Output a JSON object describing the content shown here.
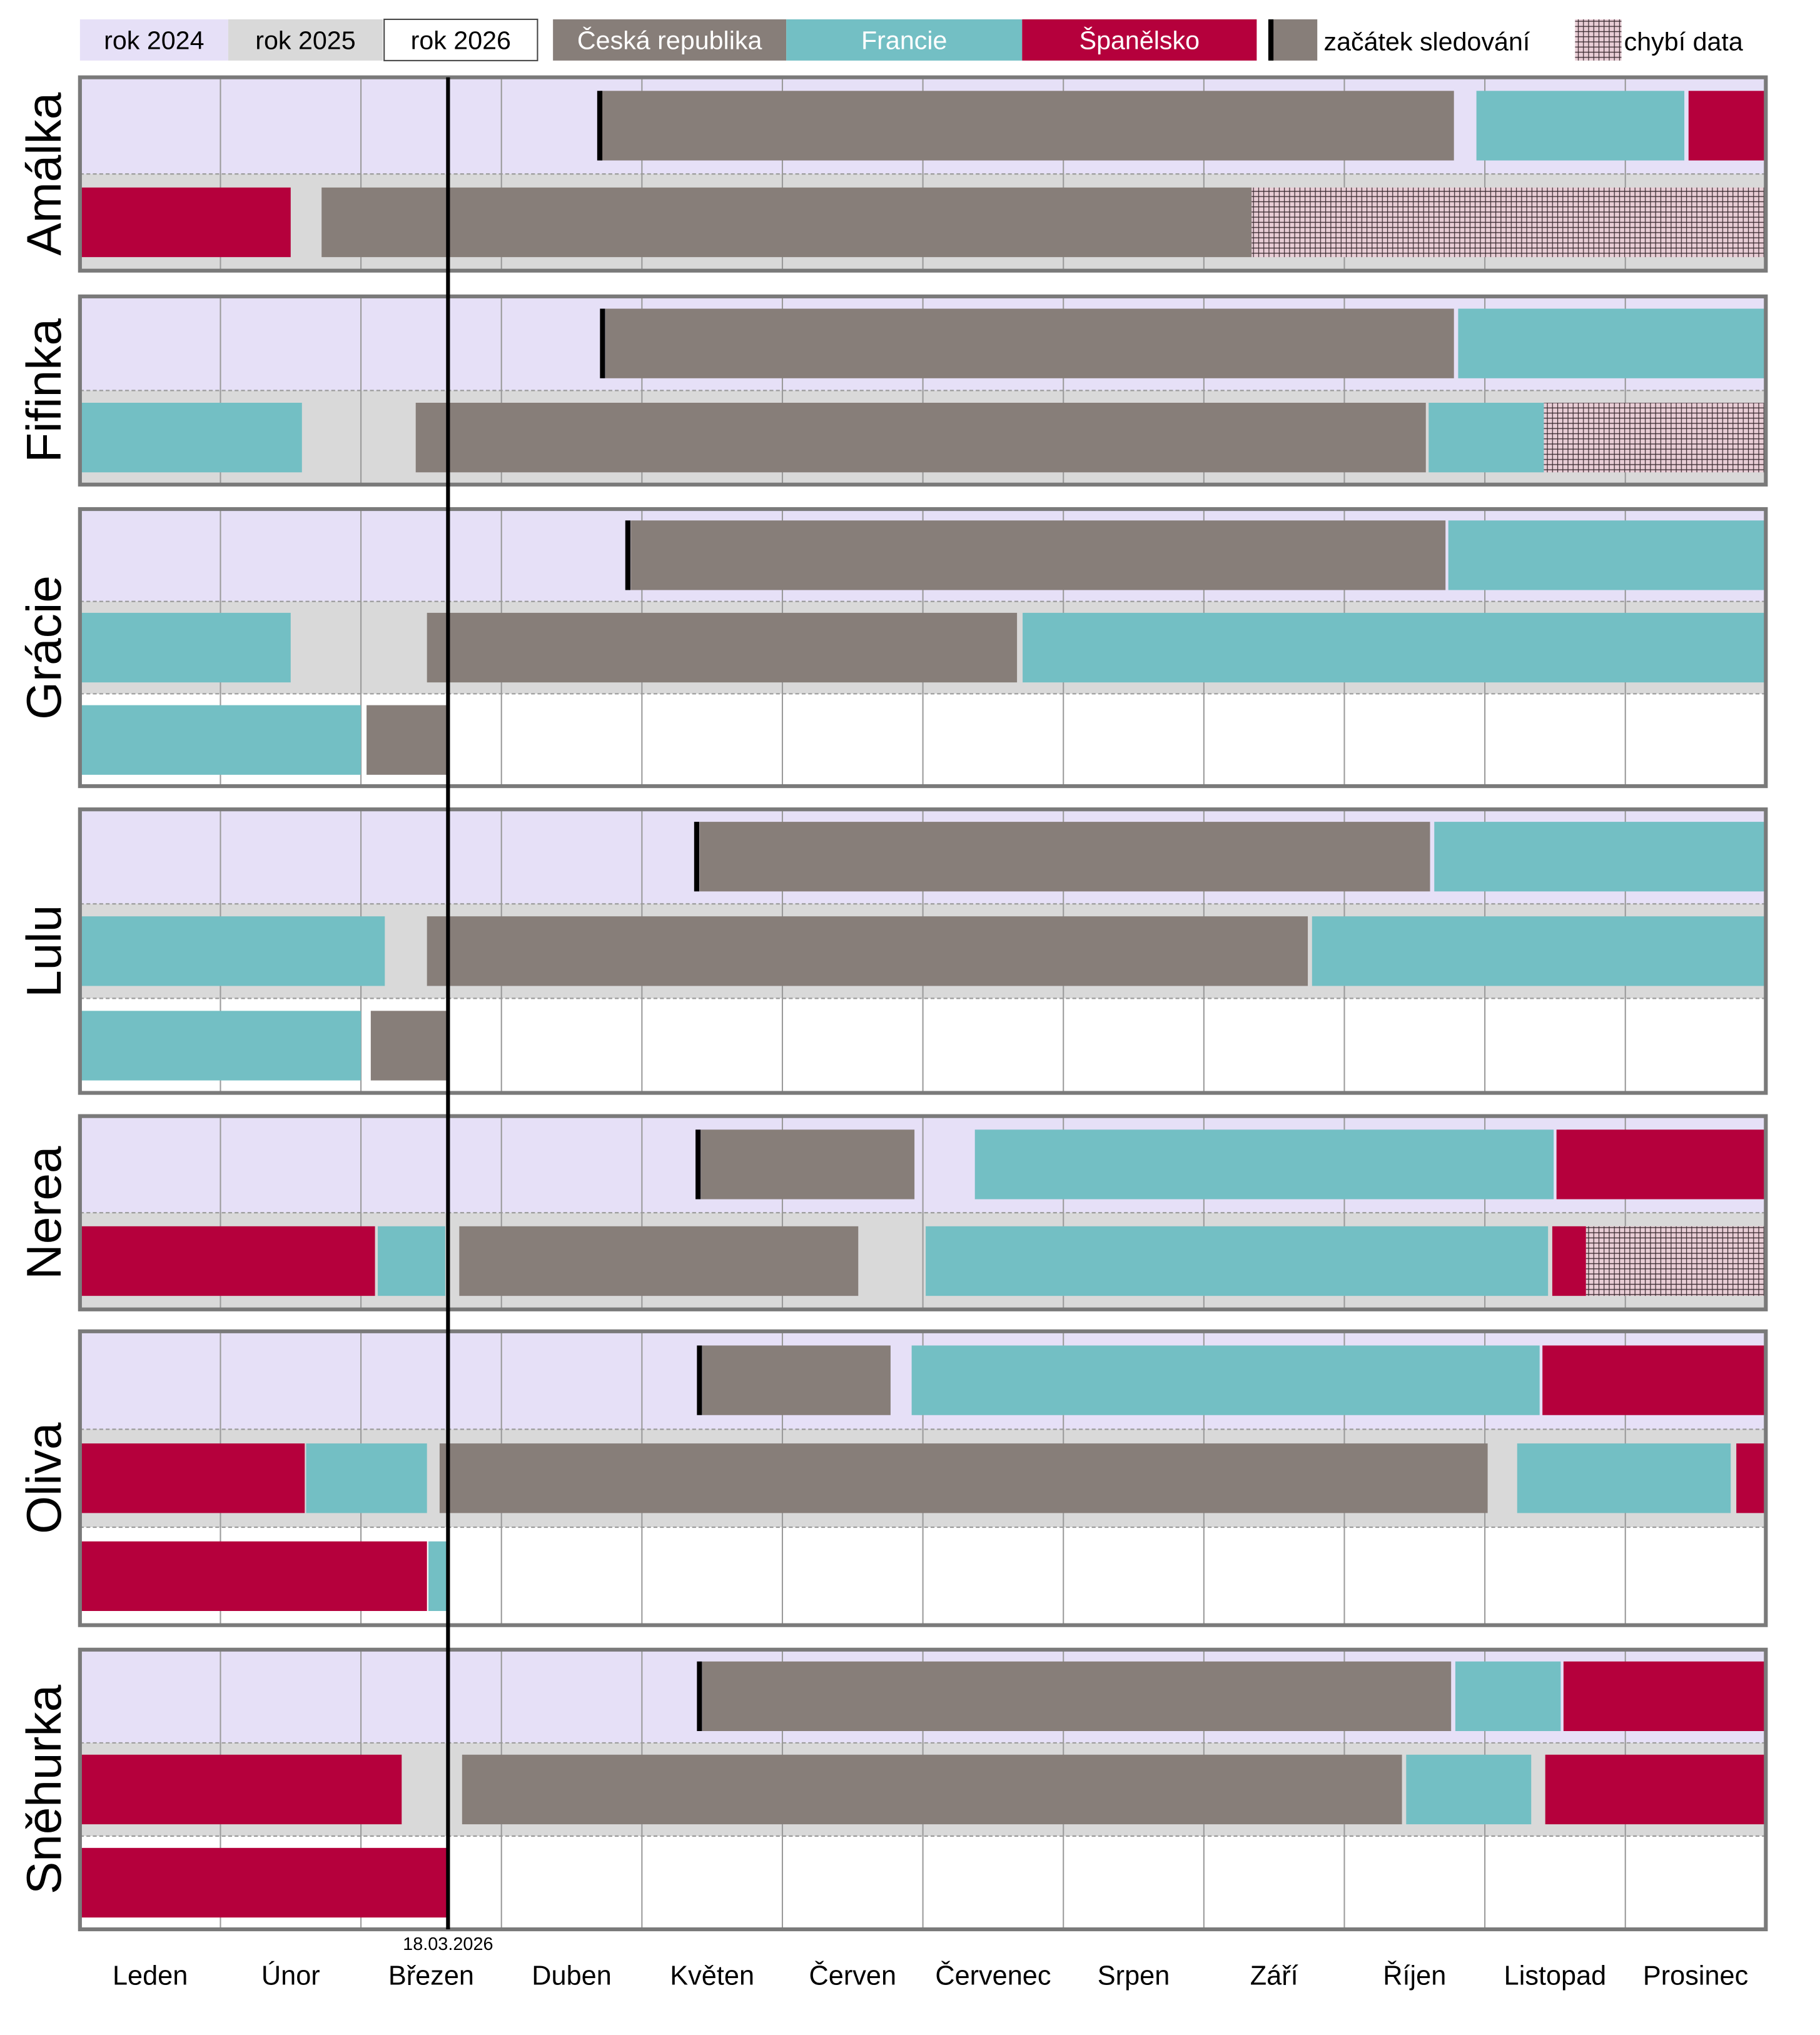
{
  "colors": {
    "y2024": "#e6e0f7",
    "y2025": "#d9d9d9",
    "y2026": "#ffffff",
    "cz": "#877e79",
    "fr": "#73bfc4",
    "es": "#b5003c",
    "missing": "#e8cdd5",
    "marker": "#000000",
    "frame": "#7a7a7a"
  },
  "legend": {
    "y2024": "rok 2024",
    "y2025": "rok 2025",
    "y2026": "rok 2026",
    "cz": "Česká republika",
    "fr": "Francie",
    "es": "Španělsko",
    "start": "začátek sledování",
    "missing": "chybí data"
  },
  "chart_data": {
    "type": "timeline",
    "x_unit": "month of year (0 = 1 Jan, 12 = 31 Dec)",
    "xlim": [
      0,
      12
    ],
    "months": [
      "Leden",
      "Únor",
      "Březen",
      "Duben",
      "Květen",
      "Červen",
      "Červenec",
      "Srpen",
      "Září",
      "Říjen",
      "Listopad",
      "Prosinec"
    ],
    "today": {
      "label": "18.03.2026",
      "value": 2.62
    },
    "animals": [
      {
        "name": "Amálka",
        "rows": [
          {
            "year": "2024",
            "start_marker": 3.7,
            "segments": [
              [
                "cz",
                3.7,
                9.78
              ],
              [
                "fr",
                9.94,
                11.42
              ],
              [
                "es",
                11.45,
                12
              ]
            ]
          },
          {
            "year": "2025",
            "segments": [
              [
                "es",
                0,
                1.5
              ],
              [
                "cz",
                1.72,
                8.34
              ],
              [
                "missing",
                8.34,
                12
              ]
            ]
          }
        ]
      },
      {
        "name": "Fifinka",
        "rows": [
          {
            "year": "2024",
            "start_marker": 3.72,
            "segments": [
              [
                "cz",
                3.74,
                9.78
              ],
              [
                "fr",
                9.81,
                12
              ]
            ]
          },
          {
            "year": "2025",
            "segments": [
              [
                "fr",
                0,
                1.58
              ],
              [
                "cz",
                2.39,
                9.58
              ],
              [
                "fr",
                9.6,
                10.42
              ],
              [
                "missing",
                10.42,
                12
              ]
            ]
          }
        ]
      },
      {
        "name": "Grácie",
        "rows": [
          {
            "year": "2024",
            "start_marker": 3.9,
            "segments": [
              [
                "cz",
                3.92,
                9.72
              ],
              [
                "fr",
                9.74,
                12
              ]
            ]
          },
          {
            "year": "2025",
            "segments": [
              [
                "fr",
                0,
                1.5
              ],
              [
                "cz",
                2.47,
                6.67
              ],
              [
                "fr",
                6.71,
                12
              ]
            ]
          },
          {
            "year": "2026",
            "segments": [
              [
                "fr",
                0,
                2.0
              ],
              [
                "cz",
                2.04,
                2.62
              ]
            ]
          }
        ]
      },
      {
        "name": "Lulu",
        "rows": [
          {
            "year": "2024",
            "start_marker": 4.39,
            "segments": [
              [
                "cz",
                4.41,
                9.61
              ],
              [
                "fr",
                9.64,
                12
              ]
            ]
          },
          {
            "year": "2025",
            "segments": [
              [
                "fr",
                0,
                2.17
              ],
              [
                "cz",
                2.47,
                8.74
              ],
              [
                "fr",
                8.77,
                12
              ]
            ]
          },
          {
            "year": "2026",
            "segments": [
              [
                "fr",
                0,
                2.0
              ],
              [
                "cz",
                2.07,
                2.62
              ]
            ]
          }
        ]
      },
      {
        "name": "Nerea",
        "rows": [
          {
            "year": "2024",
            "start_marker": 4.4,
            "segments": [
              [
                "cz",
                4.42,
                5.94
              ],
              [
                "fr",
                6.37,
                10.49
              ],
              [
                "es",
                10.51,
                12
              ]
            ]
          },
          {
            "year": "2025",
            "segments": [
              [
                "es",
                0,
                2.1
              ],
              [
                "fr",
                2.12,
                2.6
              ],
              [
                "cz",
                2.7,
                5.54
              ],
              [
                "fr",
                6.02,
                10.45
              ],
              [
                "es",
                10.48,
                10.72
              ],
              [
                "missing",
                10.72,
                12
              ]
            ]
          }
        ]
      },
      {
        "name": "Oliva",
        "rows": [
          {
            "year": "2024",
            "start_marker": 4.41,
            "segments": [
              [
                "cz",
                4.43,
                5.77
              ],
              [
                "fr",
                5.92,
                10.39
              ],
              [
                "es",
                10.41,
                12
              ]
            ]
          },
          {
            "year": "2025",
            "segments": [
              [
                "es",
                0,
                1.6
              ],
              [
                "fr",
                1.61,
                2.47
              ],
              [
                "cz",
                2.56,
                10.02
              ],
              [
                "fr",
                10.23,
                11.75
              ],
              [
                "es",
                11.79,
                12
              ]
            ]
          },
          {
            "year": "2026",
            "segments": [
              [
                "es",
                0,
                2.47
              ],
              [
                "fr",
                2.48,
                2.62
              ]
            ]
          }
        ]
      },
      {
        "name": "Sněhurka",
        "rows": [
          {
            "year": "2024",
            "start_marker": 4.41,
            "segments": [
              [
                "cz",
                4.43,
                9.76
              ],
              [
                "fr",
                9.79,
                10.54
              ],
              [
                "es",
                10.56,
                12
              ]
            ]
          },
          {
            "year": "2025",
            "segments": [
              [
                "es",
                0,
                2.29
              ],
              [
                "cz",
                2.72,
                9.41
              ],
              [
                "fr",
                9.44,
                10.33
              ],
              [
                "es",
                10.43,
                12
              ]
            ]
          },
          {
            "year": "2026",
            "segments": [
              [
                "es",
                0,
                2.62
              ]
            ]
          }
        ]
      }
    ]
  }
}
